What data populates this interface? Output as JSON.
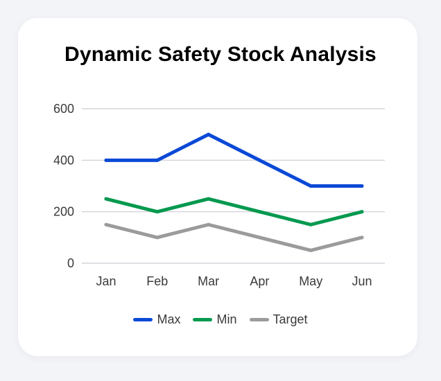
{
  "chart_data": {
    "type": "line",
    "title": "Dynamic Safety Stock Analysis",
    "xlabel": "",
    "ylabel": "",
    "categories": [
      "Jan",
      "Feb",
      "Mar",
      "Apr",
      "May",
      "Jun"
    ],
    "ylim": [
      0,
      600
    ],
    "yticks": [
      "0",
      "200",
      "400",
      "600"
    ],
    "grid": true,
    "legend_position": "bottom",
    "series": [
      {
        "name": "Max",
        "values": [
          400,
          400,
          500,
          400,
          300,
          300
        ],
        "color": "#0a49d6"
      },
      {
        "name": "Min",
        "values": [
          250,
          200,
          250,
          200,
          150,
          200
        ],
        "color": "#06994f"
      },
      {
        "name": "Target",
        "values": [
          150,
          100,
          150,
          100,
          50,
          100
        ],
        "color": "#9b9b9b"
      }
    ]
  }
}
